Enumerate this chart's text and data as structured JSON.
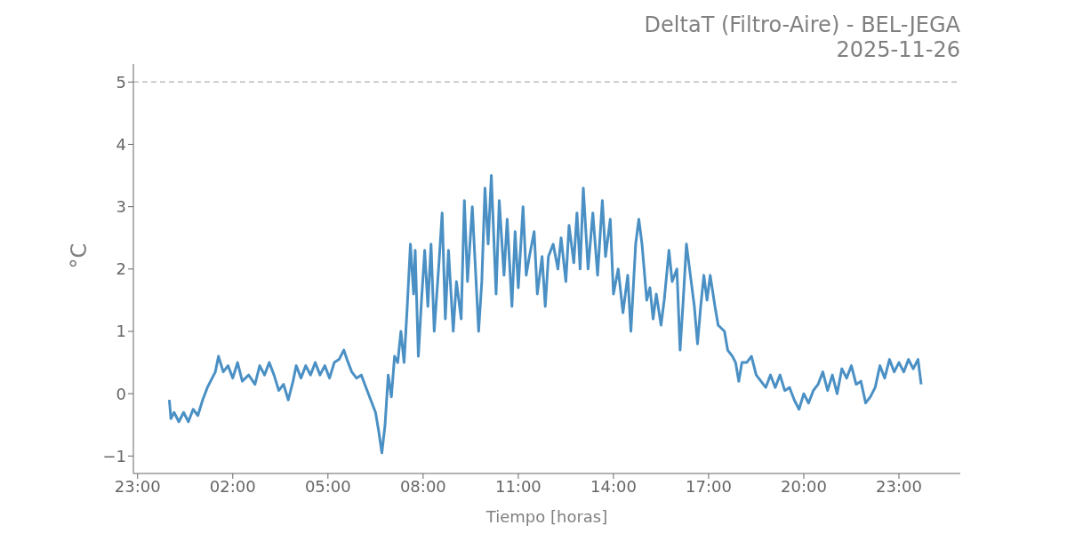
{
  "chart_data": {
    "type": "line",
    "title": "DeltaT (Filtro-Aire) - BEL-JEGA\n2025-11-26",
    "xlabel": "Tiempo [horas]",
    "ylabel": "°C",
    "xlim": [
      "2025-11-25T22:52",
      "2025-11-27T00:56"
    ],
    "xticks": [
      {
        "value": "2025-11-25T23:00",
        "label": "23:00"
      },
      {
        "value": "2025-11-26T02:00",
        "label": "02:00"
      },
      {
        "value": "2025-11-26T05:00",
        "label": "05:00"
      },
      {
        "value": "2025-11-26T08:00",
        "label": "08:00"
      },
      {
        "value": "2025-11-26T11:00",
        "label": "11:00"
      },
      {
        "value": "2025-11-26T14:00",
        "label": "14:00"
      },
      {
        "value": "2025-11-26T17:00",
        "label": "17:00"
      },
      {
        "value": "2025-11-26T20:00",
        "label": "20:00"
      },
      {
        "value": "2025-11-26T23:00",
        "label": "23:00"
      }
    ],
    "ylim": [
      -1.28,
      5.29
    ],
    "yticks": [
      {
        "value": -1,
        "label": "−1"
      },
      0,
      1,
      2,
      3,
      4,
      5
    ],
    "grid": false,
    "legend": false,
    "marker": "none",
    "line_style": "solid",
    "ref_lines": [
      {
        "axis": "y",
        "value": 5,
        "color": "#bbbbbb",
        "line_style": "dashed"
      }
    ],
    "series": [
      {
        "color": "#4a90c4",
        "x": [
          "2025-11-26T00:00",
          "2025-11-26T00:03",
          "2025-11-26T00:09",
          "2025-11-26T00:18",
          "2025-11-26T00:27",
          "2025-11-26T00:36",
          "2025-11-26T00:45",
          "2025-11-26T00:54",
          "2025-11-26T01:03",
          "2025-11-26T01:12",
          "2025-11-26T01:18",
          "2025-11-26T01:27",
          "2025-11-26T01:33",
          "2025-11-26T01:42",
          "2025-11-26T01:51",
          "2025-11-26T02:00",
          "2025-11-26T02:09",
          "2025-11-26T02:18",
          "2025-11-26T02:30",
          "2025-11-26T02:42",
          "2025-11-26T02:51",
          "2025-11-26T03:00",
          "2025-11-26T03:09",
          "2025-11-26T03:18",
          "2025-11-26T03:27",
          "2025-11-26T03:36",
          "2025-11-26T03:45",
          "2025-11-26T03:54",
          "2025-11-26T04:00",
          "2025-11-26T04:09",
          "2025-11-26T04:18",
          "2025-11-26T04:27",
          "2025-11-26T04:36",
          "2025-11-26T04:45",
          "2025-11-26T04:54",
          "2025-11-26T05:03",
          "2025-11-26T05:12",
          "2025-11-26T05:21",
          "2025-11-26T05:30",
          "2025-11-26T05:36",
          "2025-11-26T05:45",
          "2025-11-26T05:54",
          "2025-11-26T06:03",
          "2025-11-26T06:12",
          "2025-11-26T06:21",
          "2025-11-26T06:30",
          "2025-11-26T06:36",
          "2025-11-26T06:42",
          "2025-11-26T06:48",
          "2025-11-26T06:54",
          "2025-11-26T07:00",
          "2025-11-26T07:06",
          "2025-11-26T07:12",
          "2025-11-26T07:18",
          "2025-11-26T07:24",
          "2025-11-26T07:30",
          "2025-11-26T07:36",
          "2025-11-26T07:42",
          "2025-11-26T07:45",
          "2025-11-26T07:51",
          "2025-11-26T07:57",
          "2025-11-26T08:03",
          "2025-11-26T08:09",
          "2025-11-26T08:15",
          "2025-11-26T08:21",
          "2025-11-26T08:30",
          "2025-11-26T08:36",
          "2025-11-26T08:42",
          "2025-11-26T08:48",
          "2025-11-26T08:57",
          "2025-11-26T09:03",
          "2025-11-26T09:12",
          "2025-11-26T09:18",
          "2025-11-26T09:24",
          "2025-11-26T09:33",
          "2025-11-26T09:39",
          "2025-11-26T09:45",
          "2025-11-26T09:51",
          "2025-11-26T09:57",
          "2025-11-26T10:03",
          "2025-11-26T10:09",
          "2025-11-26T10:18",
          "2025-11-26T10:24",
          "2025-11-26T10:33",
          "2025-11-26T10:39",
          "2025-11-26T10:48",
          "2025-11-26T10:54",
          "2025-11-26T11:00",
          "2025-11-26T11:09",
          "2025-11-26T11:15",
          "2025-11-26T11:21",
          "2025-11-26T11:30",
          "2025-11-26T11:36",
          "2025-11-26T11:45",
          "2025-11-26T11:51",
          "2025-11-26T11:57",
          "2025-11-26T12:06",
          "2025-11-26T12:15",
          "2025-11-26T12:21",
          "2025-11-26T12:30",
          "2025-11-26T12:36",
          "2025-11-26T12:45",
          "2025-11-26T12:51",
          "2025-11-26T12:57",
          "2025-11-26T13:03",
          "2025-11-26T13:12",
          "2025-11-26T13:21",
          "2025-11-26T13:30",
          "2025-11-26T13:39",
          "2025-11-26T13:45",
          "2025-11-26T13:54",
          "2025-11-26T14:00",
          "2025-11-26T14:09",
          "2025-11-26T14:18",
          "2025-11-26T14:27",
          "2025-11-26T14:33",
          "2025-11-26T14:42",
          "2025-11-26T14:48",
          "2025-11-26T14:54",
          "2025-11-26T15:03",
          "2025-11-26T15:09",
          "2025-11-26T15:15",
          "2025-11-26T15:21",
          "2025-11-26T15:30",
          "2025-11-26T15:36",
          "2025-11-26T15:45",
          "2025-11-26T15:51",
          "2025-11-26T16:00",
          "2025-11-26T16:06",
          "2025-11-26T16:12",
          "2025-11-26T16:18",
          "2025-11-26T16:27",
          "2025-11-26T16:33",
          "2025-11-26T16:39",
          "2025-11-26T16:45",
          "2025-11-26T16:51",
          "2025-11-26T16:57",
          "2025-11-26T17:03",
          "2025-11-26T17:12",
          "2025-11-26T17:18",
          "2025-11-26T17:30",
          "2025-11-26T17:36",
          "2025-11-26T17:45",
          "2025-11-26T17:51",
          "2025-11-26T17:57",
          "2025-11-26T18:03",
          "2025-11-26T18:12",
          "2025-11-26T18:21",
          "2025-11-26T18:30",
          "2025-11-26T18:39",
          "2025-11-26T18:48",
          "2025-11-26T18:57",
          "2025-11-26T19:06",
          "2025-11-26T19:15",
          "2025-11-26T19:24",
          "2025-11-26T19:33",
          "2025-11-26T19:42",
          "2025-11-26T19:51",
          "2025-11-26T20:00",
          "2025-11-26T20:09",
          "2025-11-26T20:18",
          "2025-11-26T20:27",
          "2025-11-26T20:36",
          "2025-11-26T20:45",
          "2025-11-26T20:54",
          "2025-11-26T21:03",
          "2025-11-26T21:12",
          "2025-11-26T21:21",
          "2025-11-26T21:30",
          "2025-11-26T21:39",
          "2025-11-26T21:48",
          "2025-11-26T21:57",
          "2025-11-26T22:06",
          "2025-11-26T22:15",
          "2025-11-26T22:24",
          "2025-11-26T22:33",
          "2025-11-26T22:42",
          "2025-11-26T22:51",
          "2025-11-26T23:00",
          "2025-11-26T23:09",
          "2025-11-26T23:18",
          "2025-11-26T23:27",
          "2025-11-26T23:36",
          "2025-11-26T23:42"
        ],
        "values": [
          -0.1,
          -0.4,
          -0.3,
          -0.45,
          -0.3,
          -0.45,
          -0.25,
          -0.35,
          -0.1,
          0.1,
          0.2,
          0.35,
          0.6,
          0.35,
          0.45,
          0.25,
          0.5,
          0.2,
          0.3,
          0.15,
          0.45,
          0.3,
          0.5,
          0.3,
          0.05,
          0.15,
          -0.1,
          0.2,
          0.45,
          0.25,
          0.45,
          0.3,
          0.5,
          0.3,
          0.45,
          0.25,
          0.5,
          0.55,
          0.7,
          0.55,
          0.35,
          0.25,
          0.3,
          0.1,
          -0.1,
          -0.3,
          -0.6,
          -0.95,
          -0.5,
          0.3,
          -0.05,
          0.6,
          0.5,
          1.0,
          0.5,
          1.4,
          2.4,
          1.6,
          2.3,
          0.6,
          1.5,
          2.3,
          1.4,
          2.4,
          1.0,
          2.1,
          2.9,
          1.2,
          2.3,
          1.0,
          1.8,
          1.2,
          3.1,
          1.8,
          3.0,
          2.0,
          1.0,
          1.8,
          3.3,
          2.4,
          3.5,
          1.6,
          3.1,
          1.9,
          2.8,
          1.4,
          2.6,
          1.7,
          3.0,
          1.9,
          2.2,
          2.6,
          1.6,
          2.2,
          1.4,
          2.2,
          2.4,
          2.0,
          2.5,
          1.8,
          2.7,
          2.1,
          2.9,
          2.0,
          3.3,
          2.0,
          2.9,
          1.9,
          3.1,
          2.2,
          2.8,
          1.6,
          2.0,
          1.3,
          1.9,
          1.0,
          2.4,
          2.8,
          2.4,
          1.5,
          1.7,
          1.2,
          1.6,
          1.1,
          1.5,
          2.3,
          1.8,
          2.0,
          0.7,
          1.5,
          2.4,
          1.8,
          1.4,
          0.8,
          1.4,
          1.9,
          1.5,
          1.9,
          1.4,
          1.1,
          1.0,
          0.7,
          0.6,
          0.5,
          0.2,
          0.5,
          0.5,
          0.6,
          0.3,
          0.2,
          0.1,
          0.3,
          0.1,
          0.3,
          0.05,
          0.1,
          -0.1,
          -0.25,
          0.0,
          -0.15,
          0.05,
          0.15,
          0.35,
          0.05,
          0.3,
          0.0,
          0.4,
          0.25,
          0.45,
          0.15,
          0.2,
          -0.15,
          -0.05,
          0.1,
          0.45,
          0.25,
          0.55,
          0.35,
          0.5,
          0.35,
          0.55,
          0.4,
          0.55,
          0.15
        ]
      }
    ]
  }
}
